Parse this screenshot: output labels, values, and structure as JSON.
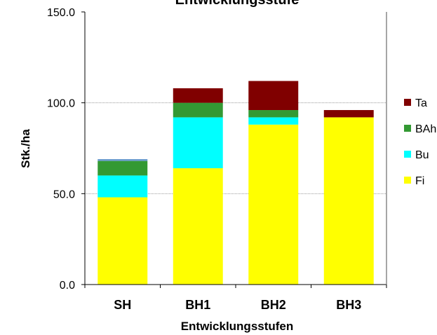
{
  "chart_data": {
    "type": "bar",
    "stacked": true,
    "title": "Entwicklungsstufe",
    "xlabel": "Entwicklungsstufen",
    "ylabel": "Stk./ha",
    "ylim": [
      0,
      150
    ],
    "yticks": [
      "0.0",
      "50.0",
      "100.0",
      "150.0"
    ],
    "grid": true,
    "legend_position": "right",
    "categories": [
      "SH",
      "BH1",
      "BH2",
      "BH3"
    ],
    "series": [
      {
        "name": "Fi",
        "color": "#ffff00",
        "values": [
          48,
          64,
          88,
          92
        ]
      },
      {
        "name": "Bu",
        "color": "#00ffff",
        "values": [
          12,
          28,
          4,
          0
        ]
      },
      {
        "name": "BAh",
        "color": "#339933",
        "values": [
          8,
          8,
          4,
          0
        ]
      },
      {
        "name": "",
        "color": "#6699cc",
        "values": [
          1,
          0,
          0,
          0
        ]
      },
      {
        "name": "Ta",
        "color": "#800000",
        "values": [
          0,
          8,
          16,
          4
        ]
      }
    ],
    "legend": [
      "Ta",
      "BAh",
      "Bu",
      "Fi"
    ]
  }
}
